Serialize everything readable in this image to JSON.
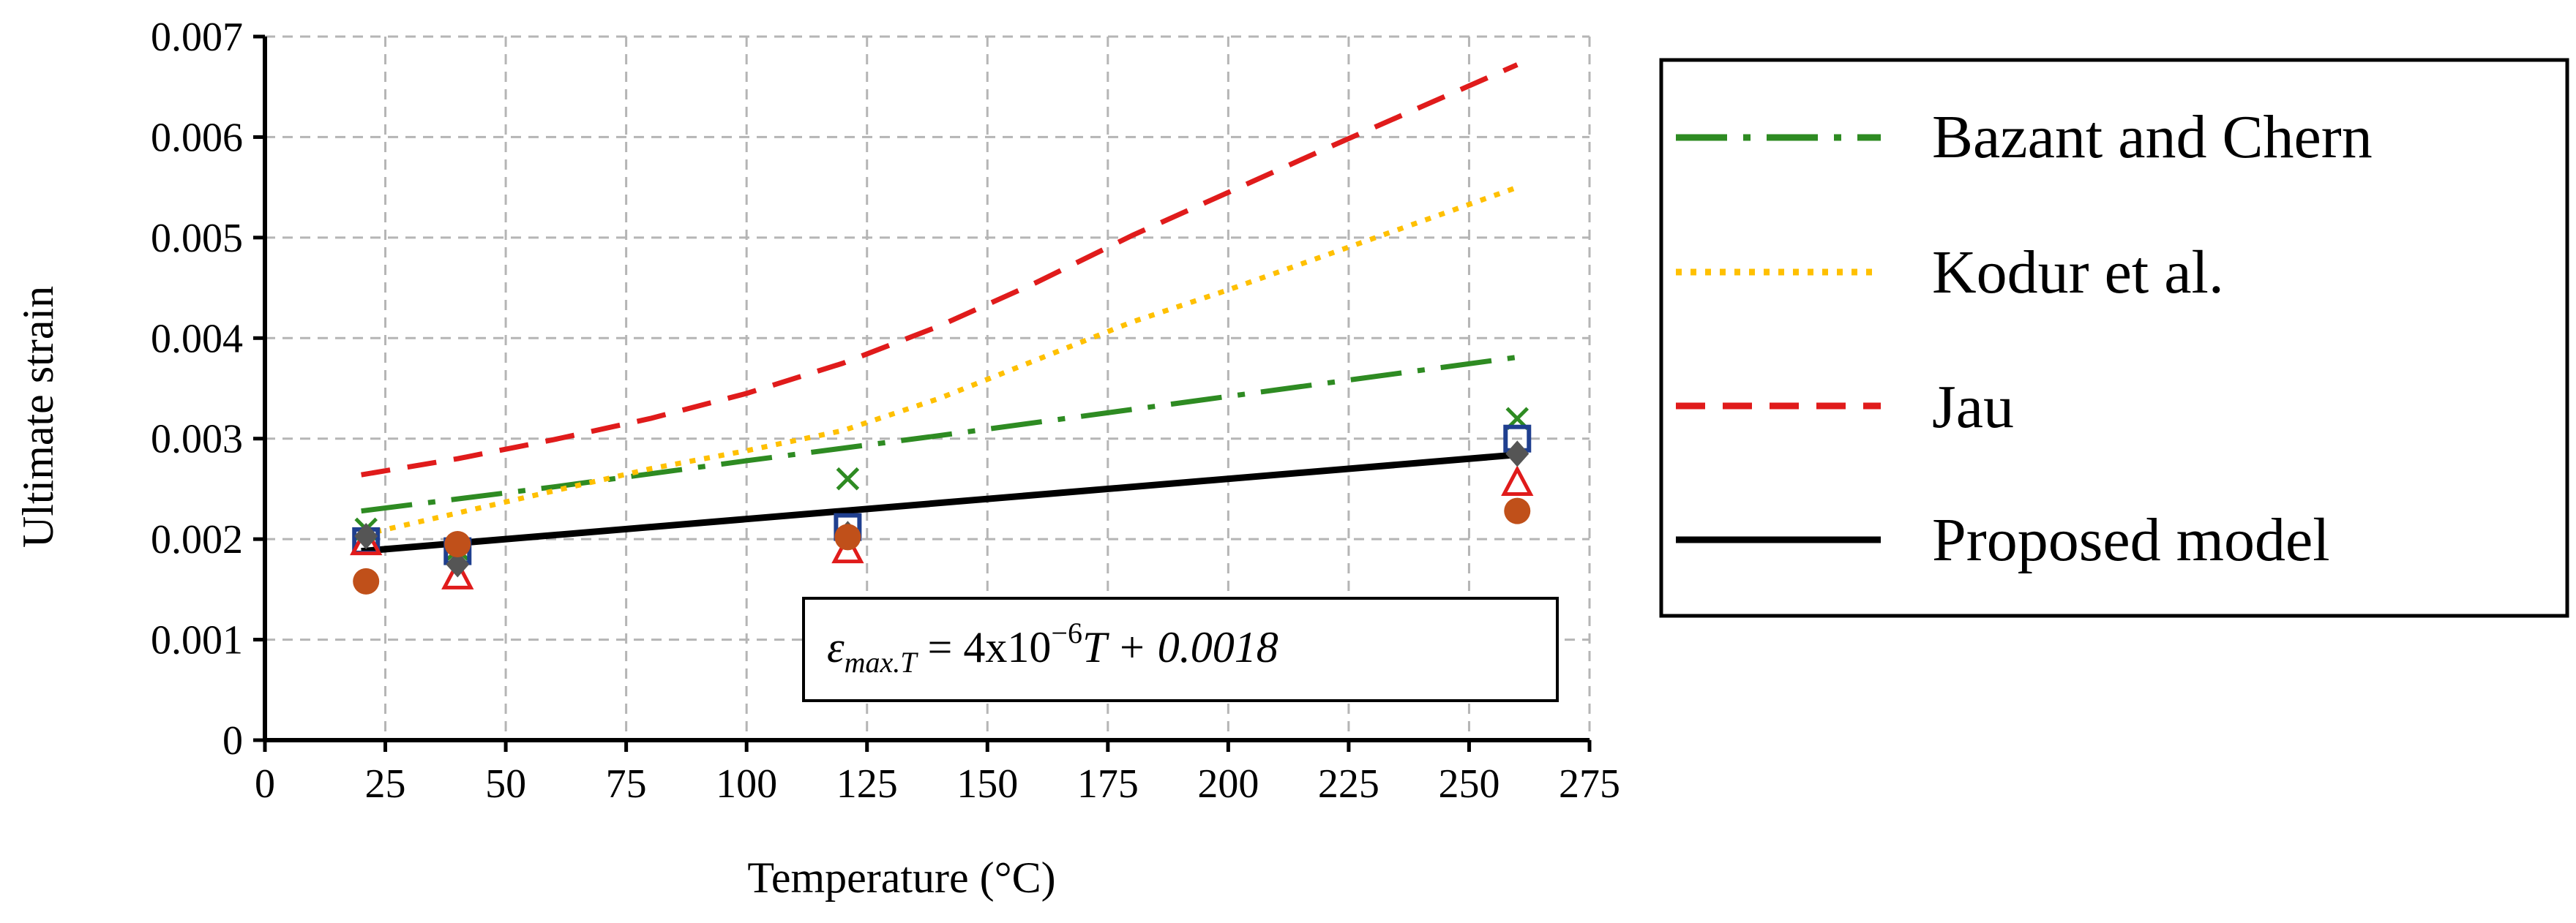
{
  "chart_data": {
    "type": "line",
    "title": "",
    "xlabel": "Temperature (°C)",
    "ylabel": "Ultimate strain",
    "xlim": [
      0,
      275
    ],
    "ylim": [
      0,
      0.007
    ],
    "xticks": [
      0,
      25,
      50,
      75,
      100,
      125,
      150,
      175,
      200,
      225,
      250,
      275
    ],
    "xtick_labels": [
      "0",
      "25",
      "50",
      "75",
      "100",
      "125",
      "150",
      "175",
      "200",
      "225",
      "250",
      "275"
    ],
    "yticks": [
      0,
      0.001,
      0.002,
      0.003,
      0.004,
      0.005,
      0.006,
      0.007
    ],
    "ytick_labels": [
      "0",
      "0.001",
      "0.002",
      "0.003",
      "0.004",
      "0.005",
      "0.006",
      "0.007"
    ],
    "grid": true,
    "legend_position": "right",
    "series": [
      {
        "name": "Bazant and Chern",
        "style": "dash-dot",
        "color": "#2e8b22",
        "x": [
          20,
          60,
          100,
          140,
          180,
          220,
          260
        ],
        "y": [
          0.00228,
          0.00252,
          0.00278,
          0.00303,
          0.00329,
          0.00355,
          0.00381
        ]
      },
      {
        "name": "Kodur et al.",
        "style": "dotted",
        "color": "#ffc000",
        "x": [
          20,
          40,
          60,
          80,
          100,
          120,
          140,
          160,
          180,
          200,
          220,
          240,
          260
        ],
        "y": [
          0.00204,
          0.00226,
          0.00248,
          0.0027,
          0.00288,
          0.00308,
          0.0034,
          0.00378,
          0.00416,
          0.00448,
          0.00482,
          0.00516,
          0.0055
        ]
      },
      {
        "name": "Jau",
        "style": "dashed",
        "color": "#e01b1b",
        "x": [
          20,
          40,
          60,
          80,
          100,
          120,
          140,
          160,
          180,
          200,
          220,
          240,
          260
        ],
        "y": [
          0.00264,
          0.0028,
          0.00299,
          0.0032,
          0.00345,
          0.00375,
          0.00412,
          0.00455,
          0.00502,
          0.00545,
          0.00588,
          0.0063,
          0.00672
        ]
      },
      {
        "name": "Proposed model",
        "style": "solid",
        "color": "#000000",
        "x": [
          20,
          260
        ],
        "y": [
          0.00188,
          0.00284
        ]
      }
    ],
    "markers": [
      {
        "symbol": "x",
        "color": "#2e8b22",
        "x": [
          21,
          40,
          121,
          260
        ],
        "y": [
          0.0021,
          0.0019,
          0.0026,
          0.0032
        ]
      },
      {
        "symbol": "square",
        "color": "#1f3f8f",
        "x": [
          21,
          40,
          121,
          260
        ],
        "y": [
          0.00198,
          0.00188,
          0.00212,
          0.003
        ]
      },
      {
        "symbol": "triangle",
        "color": "#e01b1b",
        "x": [
          21,
          40,
          121,
          260
        ],
        "y": [
          0.00196,
          0.00162,
          0.00188,
          0.00255
        ]
      },
      {
        "symbol": "diamond",
        "color": "#555555",
        "x": [
          21,
          40,
          121,
          260
        ],
        "y": [
          0.00203,
          0.00175,
          0.00205,
          0.00285
        ]
      },
      {
        "symbol": "circle",
        "color": "#c0501a",
        "x": [
          21,
          40,
          121,
          260
        ],
        "y": [
          0.00158,
          0.00195,
          0.00202,
          0.00228
        ]
      }
    ],
    "annotation": {
      "symbol": "ε",
      "subscript": "max.T",
      "lhs_tail": " = 4x10",
      "exponent": "−6",
      "rhs": "T + 0.0018"
    }
  }
}
